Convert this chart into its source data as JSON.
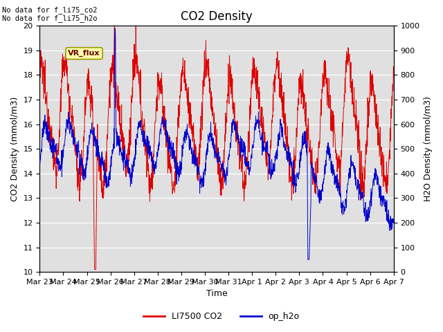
{
  "title": "CO2 Density",
  "xlabel": "Time",
  "ylabel_left": "CO2 Density (mmol/m3)",
  "ylabel_right": "H2O Density (mmol/m3)",
  "ylim_left": [
    10.0,
    20.0
  ],
  "ylim_right": [
    0,
    1000
  ],
  "yticks_left": [
    10.0,
    11.0,
    12.0,
    13.0,
    14.0,
    15.0,
    16.0,
    17.0,
    18.0,
    19.0,
    20.0
  ],
  "yticks_right": [
    0,
    100,
    200,
    300,
    400,
    500,
    600,
    700,
    800,
    900,
    1000
  ],
  "bg_color": "#e0e0e0",
  "line1_color": "#dd0000",
  "line2_color": "#0000cc",
  "vr_flux_label": "VR_flux",
  "nodata_text1": "No data for f_li75_co2",
  "nodata_text2": "No data for f_li75_h2o",
  "legend_label1": "LI7500 CO2",
  "legend_label2": "op_h2o",
  "title_fontsize": 12,
  "axis_label_fontsize": 9,
  "tick_fontsize": 8,
  "legend_fontsize": 9
}
